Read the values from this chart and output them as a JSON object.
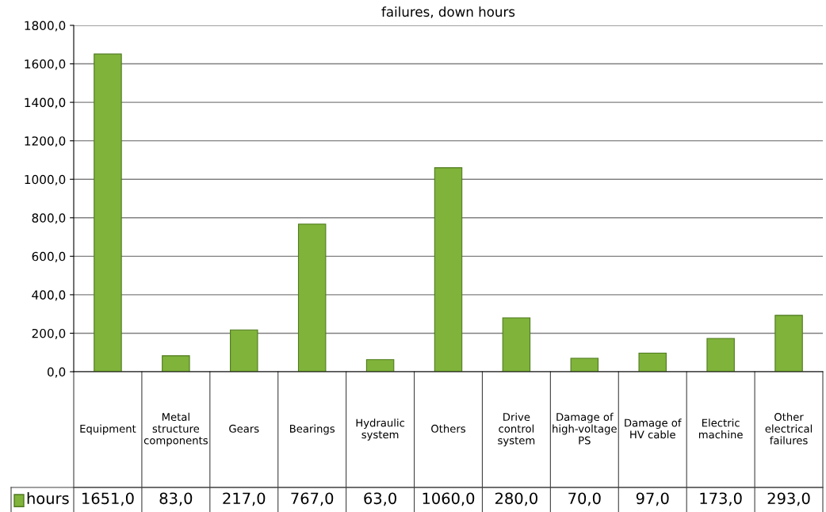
{
  "chart_data": {
    "type": "bar",
    "title": "failures, down hours",
    "categories": [
      "Equipment",
      "Metal\nstructure\ncomponents",
      "Gears",
      "Bearings",
      "Hydraulic\nsystem",
      "Others",
      "Drive\ncontrol\nsystem",
      "Damage of\nhigh-voltage\nPS",
      "Damage of\nHV cable",
      "Electric\nmachine",
      "Other\nelectrical\nfailures"
    ],
    "series": [
      {
        "name": "hours",
        "color": "#7fb33a",
        "values": [
          1651.0,
          83.0,
          217.0,
          767.0,
          63.0,
          1060.0,
          280.0,
          70.0,
          97.0,
          173.0,
          293.0
        ],
        "value_labels": [
          "1651,0",
          "83,0",
          "217,0",
          "767,0",
          "63,0",
          "1060,0",
          "280,0",
          "70,0",
          "97,0",
          "173,0",
          "293,0"
        ]
      }
    ],
    "ylim": [
      0,
      1800
    ],
    "yticks": [
      {
        "value": 0,
        "label": "0,0"
      },
      {
        "value": 200,
        "label": "200,0"
      },
      {
        "value": 400,
        "label": "400,0"
      },
      {
        "value": 600,
        "label": "600,0"
      },
      {
        "value": 800,
        "label": "800,0"
      },
      {
        "value": 1000,
        "label": "1000,0"
      },
      {
        "value": 1200,
        "label": "1200,0"
      },
      {
        "value": 1400,
        "label": "1400,0"
      },
      {
        "value": 1600,
        "label": "1600,0"
      },
      {
        "value": 1800,
        "label": "1800,0"
      }
    ],
    "grid": "y",
    "legend": "bottom left"
  }
}
